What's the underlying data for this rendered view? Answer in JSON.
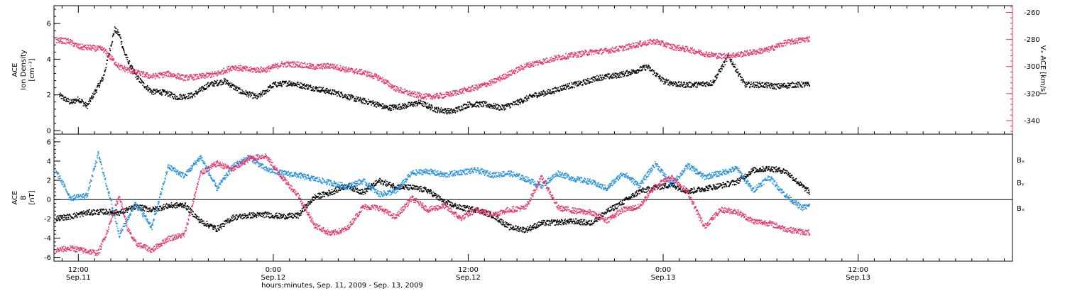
{
  "colors": {
    "black": "#000000",
    "red": "#e8336a",
    "blue": "#1f8fe0"
  },
  "xaxis": {
    "title": "hours:minutes, Sep. 11, 2009 - Sep. 13, 2009",
    "range_hours": [
      10.5,
      69.5
    ],
    "ticks": [
      {
        "hour": 12,
        "time": "12:00",
        "date": "Sep.11"
      },
      {
        "hour": 24,
        "time": "0:00",
        "date": "Sep.12"
      },
      {
        "hour": 36,
        "time": "12:00",
        "date": "Sep.12"
      },
      {
        "hour": 48,
        "time": "0:00",
        "date": "Sep.13"
      },
      {
        "hour": 60,
        "time": "12:00",
        "date": "Sep.13"
      }
    ]
  },
  "chart_data": [
    {
      "type": "scatter",
      "panel": "top",
      "ylabel_lines": [
        "ACE",
        "Ion Density",
        "[cm⁻³]"
      ],
      "ylim": [
        -0.2,
        7
      ],
      "yticks": [
        0,
        2,
        4,
        6
      ],
      "y2label": "Vₓ ACE [km/s]",
      "y2lim": [
        -350,
        -255
      ],
      "y2ticks": [
        -340,
        -320,
        -300,
        -280,
        -260
      ],
      "series": [
        {
          "axis": "left",
          "color": "#000000",
          "x": [
            10.8,
            11.5,
            12.0,
            12.5,
            13.0,
            13.5,
            13.9,
            14.2,
            14.5,
            14.8,
            15.2,
            15.6,
            16.0,
            16.5,
            17.0,
            17.5,
            18.0,
            19.0,
            20.0,
            21.0,
            22.0,
            23.0,
            24.0,
            25.0,
            26.0,
            27.0,
            28.0,
            29.0,
            30.0,
            31.0,
            32.0,
            33.0,
            34.0,
            35.0,
            36.0,
            37.0,
            38.0,
            39.0,
            40.0,
            41.0,
            42.0,
            43.0,
            44.0,
            45.0,
            46.0,
            47.0,
            48.0,
            49.0,
            50.0,
            51.0,
            52.0,
            53.0,
            54.0,
            55.0,
            56.0,
            57.0
          ],
          "values": [
            2.0,
            1.6,
            1.8,
            1.4,
            2.2,
            3.0,
            4.5,
            5.7,
            5.4,
            4.4,
            3.6,
            3.0,
            2.6,
            2.2,
            2.2,
            2.1,
            1.9,
            2.0,
            2.6,
            2.8,
            2.2,
            1.9,
            2.6,
            2.7,
            2.5,
            2.3,
            2.1,
            1.8,
            1.6,
            1.3,
            1.4,
            1.6,
            1.2,
            1.1,
            1.5,
            1.5,
            1.3,
            1.6,
            2.0,
            2.2,
            2.5,
            2.7,
            3.0,
            3.1,
            3.3,
            3.6,
            2.8,
            2.6,
            2.6,
            2.7,
            4.2,
            2.6,
            2.6,
            2.5,
            2.6,
            2.6
          ]
        },
        {
          "axis": "right",
          "color": "#e8336a",
          "x": [
            10.6,
            11.4,
            12.0,
            12.9,
            13.5,
            14.5,
            15.5,
            16.5,
            17.5,
            18.5,
            19.5,
            20.5,
            21.5,
            22.5,
            23.5,
            24.5,
            25.5,
            26.5,
            27.5,
            28.5,
            29.5,
            30.5,
            31.5,
            32.5,
            33.5,
            34.5,
            35.5,
            36.5,
            37.5,
            38.5,
            39.5,
            40.5,
            41.5,
            42.5,
            43.5,
            44.5,
            45.5,
            46.5,
            47.5,
            48.5,
            49.5,
            50.5,
            51.0,
            51.5,
            52.5,
            53.5,
            54.5,
            55.5,
            56.5,
            57.0
          ],
          "values": [
            -280,
            -281,
            -285,
            -286,
            -287,
            -300,
            -304,
            -307,
            -305,
            -308,
            -307,
            -305,
            -300,
            -302,
            -302,
            -298,
            -298,
            -300,
            -299,
            -302,
            -304,
            -308,
            -316,
            -320,
            -322,
            -321,
            -318,
            -315,
            -311,
            -305,
            -299,
            -296,
            -293,
            -291,
            -289,
            -288,
            -286,
            -283,
            -281,
            -285,
            -287,
            -290,
            -291,
            -292,
            -291,
            -289,
            -287,
            -282,
            -280,
            -279
          ]
        }
      ]
    },
    {
      "type": "scatter",
      "panel": "bottom",
      "ylabel_lines": [
        "ACE",
        "B",
        "[nT]"
      ],
      "ylim": [
        -6.4,
        6.8
      ],
      "yticks": [
        -6,
        -4,
        -2,
        0,
        2,
        4,
        6
      ],
      "zero_line": true,
      "legend": [
        "Bₓ",
        "Bᵧ",
        "Bₓ"
      ],
      "series": [
        {
          "name": "Bx",
          "color": "#000000",
          "x": [
            10.6,
            11.5,
            12.5,
            13.5,
            14.5,
            15.5,
            16.5,
            17.5,
            18.5,
            19.5,
            20.5,
            21.5,
            22.5,
            23.5,
            24.5,
            25.5,
            26.5,
            27.5,
            28.5,
            29.5,
            30.5,
            31.5,
            32.5,
            33.5,
            34.5,
            35.5,
            36.5,
            37.5,
            38.5,
            39.5,
            40.5,
            41.5,
            42.5,
            43.5,
            44.5,
            45.5,
            46.5,
            47.5,
            48.5,
            49.5,
            50.5,
            51.5,
            52.5,
            53.5,
            54.5,
            55.5,
            56.5,
            57.0
          ],
          "values": [
            -1.9,
            -1.7,
            -1.3,
            -1.2,
            -1.3,
            -0.7,
            -1.0,
            -0.6,
            -0.5,
            -2.2,
            -3.0,
            -1.8,
            -1.6,
            -1.5,
            -1.7,
            -1.6,
            0.3,
            0.8,
            1.5,
            0.8,
            2.0,
            1.4,
            1.3,
            1.0,
            -0.2,
            -0.8,
            -1.0,
            -1.6,
            -2.8,
            -3.1,
            -2.4,
            -2.3,
            -2.2,
            -2.4,
            -1.2,
            -0.2,
            0.9,
            1.3,
            1.6,
            0.9,
            1.2,
            1.5,
            1.9,
            3.1,
            3.3,
            3.0,
            1.5,
            0.8
          ]
        },
        {
          "name": "By",
          "color": "#1f8fe0",
          "x": [
            10.6,
            11.5,
            12.5,
            13.2,
            13.8,
            14.5,
            15.5,
            16.5,
            17.5,
            18.5,
            19.5,
            20.5,
            21.5,
            22.5,
            23.5,
            24.5,
            25.5,
            26.5,
            27.5,
            28.5,
            29.5,
            30.5,
            31.5,
            32.5,
            33.5,
            34.5,
            35.5,
            36.5,
            37.5,
            38.5,
            39.5,
            40.5,
            41.5,
            42.5,
            43.5,
            44.5,
            45.5,
            46.5,
            47.5,
            48.5,
            49.5,
            50.5,
            51.5,
            52.5,
            53.5,
            54.5,
            55.5,
            56.5,
            57.0
          ],
          "values": [
            3.0,
            0.2,
            0.5,
            4.8,
            1.0,
            -3.6,
            -0.3,
            -2.8,
            3.5,
            2.5,
            4.5,
            1.2,
            3.5,
            4.5,
            3.2,
            2.8,
            2.6,
            2.2,
            1.8,
            1.4,
            2.0,
            0.6,
            0.9,
            2.8,
            3.0,
            2.6,
            2.9,
            3.1,
            2.6,
            2.8,
            2.2,
            1.5,
            2.8,
            2.2,
            1.9,
            1.2,
            2.8,
            1.5,
            3.8,
            1.6,
            3.6,
            2.4,
            2.8,
            3.3,
            1.0,
            2.4,
            0.5,
            -0.8,
            -0.6
          ]
        },
        {
          "name": "Bz",
          "color": "#e8336a",
          "x": [
            10.6,
            11.5,
            12.5,
            13.2,
            13.8,
            14.5,
            15.0,
            15.5,
            16.5,
            17.5,
            18.5,
            19.5,
            20.5,
            21.5,
            22.5,
            23.5,
            24.5,
            25.5,
            26.5,
            27.5,
            28.5,
            29.5,
            30.5,
            31.5,
            32.5,
            33.5,
            34.5,
            35.5,
            36.5,
            37.5,
            38.5,
            39.5,
            40.5,
            41.5,
            42.5,
            43.5,
            44.5,
            45.5,
            46.5,
            47.5,
            48.5,
            49.5,
            50.5,
            51.5,
            52.5,
            53.5,
            54.5,
            55.5,
            56.5,
            57.0
          ],
          "values": [
            -5.2,
            -5.0,
            -5.3,
            -5.5,
            -3.0,
            0.5,
            -3.0,
            -4.5,
            -5.2,
            -4.0,
            -3.6,
            2.8,
            3.8,
            3.2,
            4.3,
            4.6,
            2.4,
            0.5,
            -2.6,
            -3.5,
            -3.0,
            -0.7,
            -0.8,
            -1.8,
            0.2,
            -1.0,
            -0.6,
            -1.9,
            -1.0,
            -1.5,
            -1.0,
            -0.8,
            2.4,
            -0.8,
            -1.1,
            -1.3,
            -2.1,
            -1.0,
            -0.7,
            1.5,
            2.4,
            0.8,
            -2.8,
            -1.0,
            -1.2,
            -2.2,
            -2.4,
            -3.0,
            -3.3,
            -3.4
          ]
        }
      ]
    }
  ]
}
